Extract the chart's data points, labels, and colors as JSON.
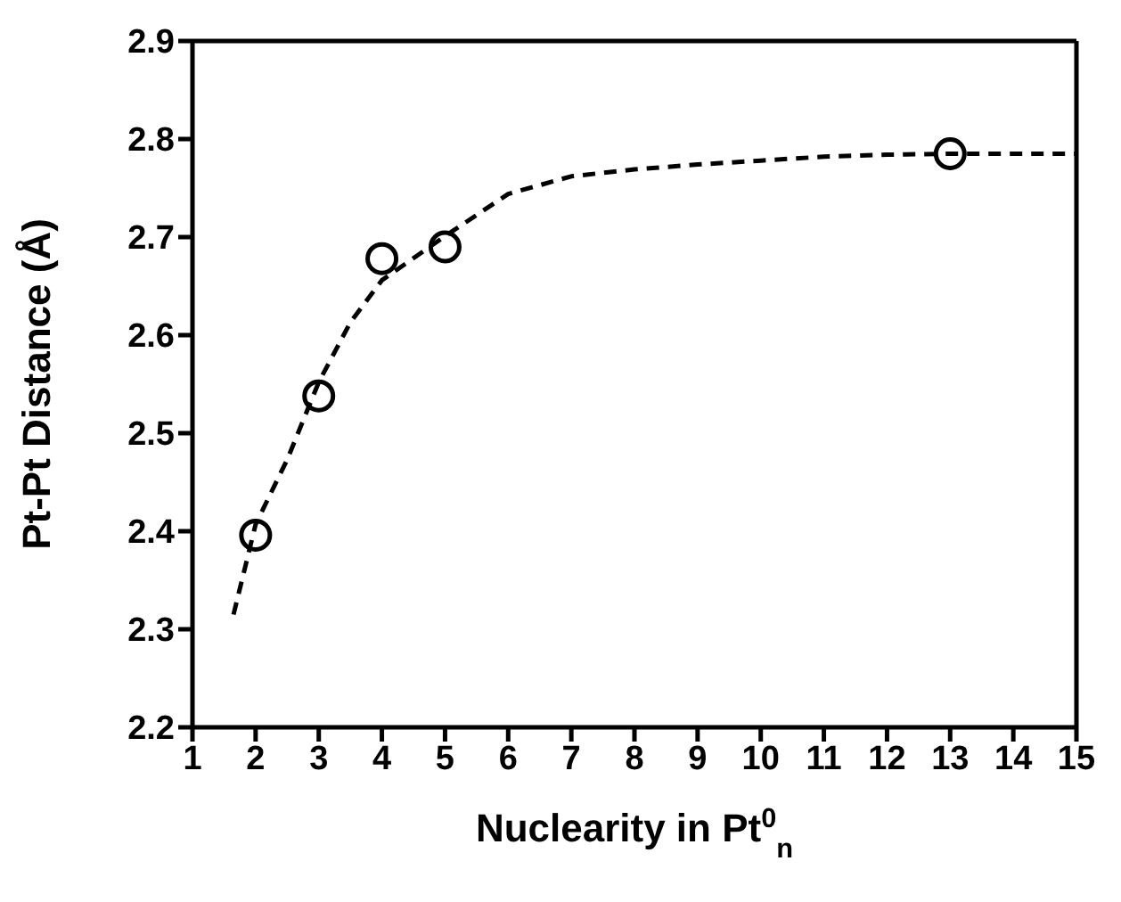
{
  "chart_data": {
    "type": "scatter",
    "xlabel": "Nuclearity in Pt$^{0}$$_{n}$",
    "ylabel": "Pt-Pt Distance (Å)",
    "xlim": [
      1,
      15
    ],
    "xticks": [
      1,
      2,
      3,
      4,
      5,
      6,
      7,
      8,
      9,
      10,
      11,
      12,
      13,
      14,
      15
    ],
    "ylim": [
      2.2,
      2.9
    ],
    "yticks": [
      2.2,
      2.3,
      2.4,
      2.5,
      2.6,
      2.7,
      2.8,
      2.9
    ],
    "series": [
      {
        "type": "line",
        "color": "#000000",
        "marker": "none",
        "line_style": "dashed",
        "x": [
          1.65,
          2,
          2.5,
          3,
          3.5,
          4,
          5,
          6,
          7,
          8,
          9,
          10,
          11,
          12,
          13,
          14,
          15
        ],
        "values": [
          2.315,
          2.407,
          2.473,
          2.552,
          2.613,
          2.656,
          2.701,
          2.744,
          2.762,
          2.769,
          2.774,
          2.778,
          2.782,
          2.784,
          2.785,
          2.785,
          2.785
        ]
      },
      {
        "color": "#000000",
        "marker": "circle",
        "x": [
          2,
          3,
          4,
          5,
          13
        ],
        "values": [
          2.396,
          2.538,
          2.678,
          2.69,
          2.785
        ]
      }
    ]
  }
}
